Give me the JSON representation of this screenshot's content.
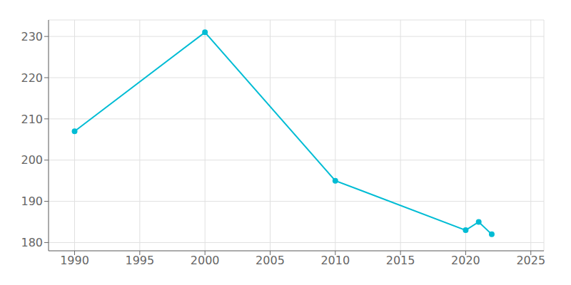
{
  "chart_data": {
    "type": "line",
    "x": [
      1990,
      2000,
      2010,
      2020,
      2021,
      2022
    ],
    "values": [
      207,
      231,
      195,
      183,
      185,
      182
    ],
    "color": "#00bcd4",
    "xlim": [
      1988,
      2026
    ],
    "ylim": [
      178,
      234
    ],
    "xticks": [
      1990,
      1995,
      2000,
      2005,
      2010,
      2015,
      2020,
      2025
    ],
    "yticks": [
      180,
      190,
      200,
      210,
      220,
      230
    ],
    "grid": true,
    "marker": "circle"
  }
}
